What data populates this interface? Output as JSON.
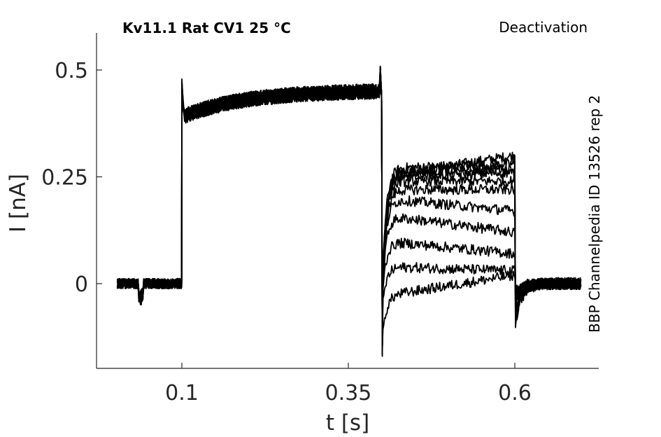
{
  "chart_data": {
    "type": "line",
    "title": "Kv11.1  Rat  CV1  25 °C",
    "protocol_label": "Deactivation",
    "side_label": "BBP Channelpedia ID 13526 rep 2",
    "xlabel": "t [s]",
    "ylabel": "I [nA]",
    "xlim": [
      -0.025,
      0.73
    ],
    "ylim": [
      -0.2,
      0.58
    ],
    "x_ticks": [
      0.1,
      0.35,
      0.6
    ],
    "x_tick_labels": [
      "0.1",
      "0.35",
      "0.6"
    ],
    "y_ticks": [
      0,
      0.25,
      0.5
    ],
    "y_tick_labels": [
      "0",
      "0.25",
      "0.5"
    ],
    "grid": false,
    "line_color": "#000000",
    "protocol_times": {
      "start": 0.003,
      "step1": 0.1,
      "step2": 0.4,
      "step3": 0.6,
      "end": 0.7
    },
    "step1_current": {
      "initial_peak": 0.48,
      "plateau_start": 0.39,
      "plateau_end": 0.45
    },
    "tail_notch": -0.17,
    "series": [
      {
        "tail_start": 0.25,
        "tail_end": 0.3,
        "final_transient": -0.1
      },
      {
        "tail_start": 0.27,
        "tail_end": 0.28,
        "final_transient": -0.09
      },
      {
        "tail_start": 0.26,
        "tail_end": 0.27,
        "final_transient": -0.08
      },
      {
        "tail_start": 0.25,
        "tail_end": 0.26,
        "final_transient": -0.07
      },
      {
        "tail_start": 0.24,
        "tail_end": 0.24,
        "final_transient": -0.06
      },
      {
        "tail_start": 0.22,
        "tail_end": 0.22,
        "final_transient": -0.05
      },
      {
        "tail_start": 0.2,
        "tail_end": 0.17,
        "final_transient": -0.04
      },
      {
        "tail_start": 0.16,
        "tail_end": 0.12,
        "final_transient": -0.03
      },
      {
        "tail_start": 0.1,
        "tail_end": 0.07,
        "final_transient": -0.03
      },
      {
        "tail_start": 0.04,
        "tail_end": 0.03,
        "final_transient": -0.02
      },
      {
        "tail_start": -0.03,
        "tail_end": 0.02,
        "final_transient": -0.02
      }
    ]
  }
}
